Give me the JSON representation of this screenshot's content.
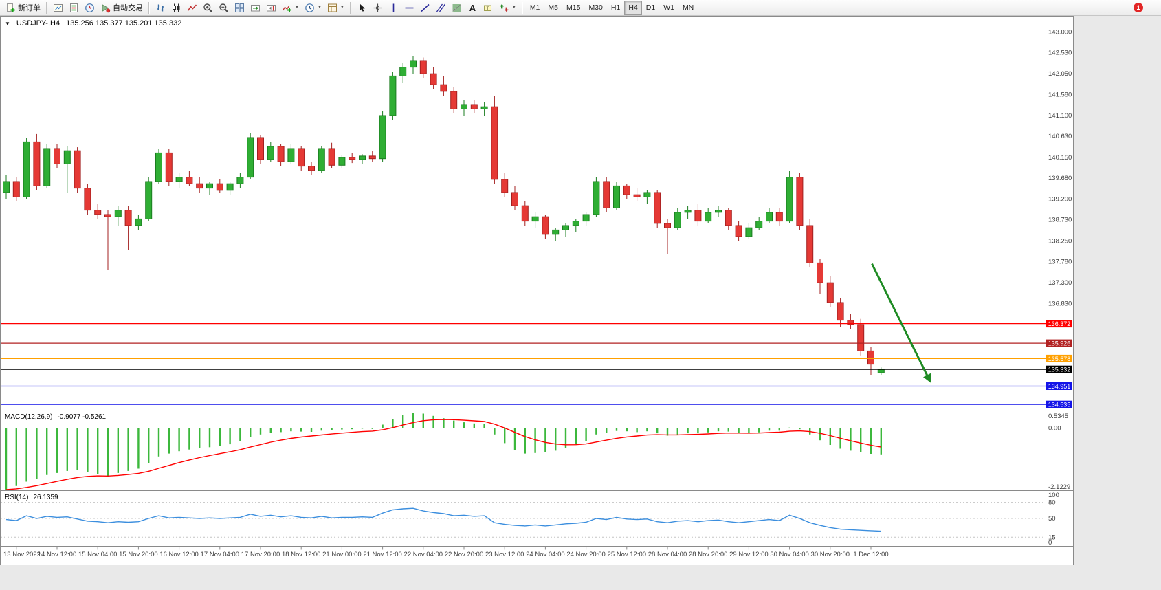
{
  "toolbar": {
    "new_order_label": "新订单",
    "auto_trading_label": "自动交易",
    "left_icons": [
      {
        "name": "new-chart-icon"
      },
      {
        "name": "market-watch-icon"
      },
      {
        "name": "navigator-icon"
      }
    ],
    "chart_icons": [
      {
        "name": "bar-chart-icon"
      },
      {
        "name": "candlestick-chart-icon"
      },
      {
        "name": "line-chart-icon"
      },
      {
        "name": "zoom-in-icon"
      },
      {
        "name": "zoom-out-icon"
      },
      {
        "name": "tile-windows-icon"
      },
      {
        "name": "auto-scroll-icon"
      },
      {
        "name": "chart-shift-icon"
      },
      {
        "name": "indicators-icon",
        "caret": true
      },
      {
        "name": "periods-icon",
        "caret": true
      },
      {
        "name": "templates-icon",
        "caret": true
      }
    ],
    "drawing_icons": [
      {
        "name": "cursor-icon"
      },
      {
        "name": "crosshair-icon"
      },
      {
        "name": "vertical-line-icon"
      },
      {
        "name": "horizontal-line-icon"
      },
      {
        "name": "trendline-icon"
      },
      {
        "name": "channel-icon"
      },
      {
        "name": "fibonacci-icon"
      },
      {
        "name": "text-icon"
      },
      {
        "name": "text-label-icon"
      },
      {
        "name": "arrows-icon",
        "caret": true
      }
    ],
    "timeframes": [
      "M1",
      "M5",
      "M15",
      "M30",
      "H1",
      "H4",
      "D1",
      "W1",
      "MN"
    ],
    "active_timeframe": "H4",
    "notification_badge": "1"
  },
  "chart": {
    "expander": "▼",
    "title_symbol": "USDJPY-,H4",
    "title_ohlc": "135.256 135.377 135.201 135.332"
  },
  "indicators": {
    "macd_label": "MACD(12,26,9)",
    "macd_values": "-0.9077 -0.5261",
    "rsi_label": "RSI(14)",
    "rsi_value": "26.1359"
  },
  "colors": {
    "bull": "#2FAE34",
    "bear": "#E53935",
    "bull_border": "#1B7D20",
    "bear_border": "#A32020",
    "macd_histogram": "#3CB83C",
    "macd_signal": "#FF0000",
    "rsi_line": "#3B8EDE",
    "trend_arrow": "#1F8B24"
  },
  "chart_data": [
    {
      "type": "candlestick",
      "symbol": "USDJPY-",
      "timeframe": "H4",
      "ylim": [
        134.41,
        143.35
      ],
      "y_ticks": [
        "143.000",
        "142.530",
        "142.050",
        "141.580",
        "141.100",
        "140.630",
        "140.150",
        "139.680",
        "139.200",
        "138.730",
        "138.250",
        "137.780",
        "137.300",
        "136.830"
      ],
      "levels": [
        {
          "price": 136.372,
          "label": "136.372",
          "color": "#FF0000"
        },
        {
          "price": 135.926,
          "label": "135.926",
          "color": "#B22222"
        },
        {
          "price": 135.578,
          "label": "135.578",
          "color": "#FFA000"
        },
        {
          "price": 135.332,
          "label": "135.332",
          "color": "#000000",
          "current": true
        },
        {
          "price": 134.951,
          "label": "134.951",
          "color": "#1414E8"
        },
        {
          "price": 134.535,
          "label": "134.535",
          "color": "#1414E8"
        }
      ],
      "annotations": [
        {
          "type": "arrow",
          "from": {
            "index": 85.1,
            "price": 137.73
          },
          "to": {
            "index": 90.8,
            "price": 135.07
          },
          "color": "#1F8B24"
        }
      ],
      "x_labels": [
        "13 Nov 2022",
        "14 Nov 12:00",
        "15 Nov 04:00",
        "15 Nov 20:00",
        "16 Nov 12:00",
        "17 Nov 04:00",
        "17 Nov 20:00",
        "18 Nov 12:00",
        "21 Nov 00:00",
        "21 Nov 12:00",
        "22 Nov 04:00",
        "22 Nov 20:00",
        "23 Nov 12:00",
        "24 Nov 04:00",
        "24 Nov 20:00",
        "25 Nov 12:00",
        "28 Nov 04:00",
        "28 Nov 20:00",
        "29 Nov 12:00",
        "30 Nov 04:00",
        "30 Nov 20:00",
        "1 Dec 12:00"
      ],
      "x_label_start": 1,
      "x_label_step": 4,
      "ohlc": [
        [
          139.35,
          139.75,
          139.2,
          139.6
        ],
        [
          139.6,
          139.7,
          139.15,
          139.25
        ],
        [
          139.25,
          140.6,
          139.2,
          140.5
        ],
        [
          140.5,
          140.68,
          139.4,
          139.5
        ],
        [
          139.5,
          140.45,
          139.45,
          140.35
        ],
        [
          140.35,
          140.45,
          139.9,
          140.0
        ],
        [
          140.0,
          140.4,
          139.35,
          140.3
        ],
        [
          140.3,
          140.38,
          139.35,
          139.45
        ],
        [
          139.45,
          139.55,
          138.85,
          138.95
        ],
        [
          138.95,
          139.1,
          138.75,
          138.85
        ],
        [
          138.85,
          138.95,
          137.6,
          138.8
        ],
        [
          138.8,
          139.05,
          138.6,
          138.95
        ],
        [
          138.95,
          139.05,
          138.05,
          138.6
        ],
        [
          138.6,
          138.85,
          138.5,
          138.75
        ],
        [
          138.75,
          139.7,
          138.7,
          139.6
        ],
        [
          139.6,
          140.35,
          139.55,
          140.25
        ],
        [
          140.25,
          140.35,
          139.5,
          139.6
        ],
        [
          139.6,
          139.8,
          139.45,
          139.7
        ],
        [
          139.7,
          139.85,
          139.5,
          139.55
        ],
        [
          139.55,
          139.7,
          139.35,
          139.45
        ],
        [
          139.45,
          139.6,
          139.3,
          139.55
        ],
        [
          139.55,
          139.65,
          139.35,
          139.4
        ],
        [
          139.4,
          139.6,
          139.3,
          139.55
        ],
        [
          139.55,
          139.8,
          139.45,
          139.7
        ],
        [
          139.7,
          140.7,
          139.65,
          140.6
        ],
        [
          140.6,
          140.65,
          140.0,
          140.1
        ],
        [
          140.1,
          140.5,
          140.05,
          140.4
        ],
        [
          140.4,
          140.45,
          139.95,
          140.05
        ],
        [
          140.05,
          140.45,
          140.0,
          140.35
        ],
        [
          140.35,
          140.4,
          139.85,
          139.95
        ],
        [
          139.95,
          140.05,
          139.75,
          139.85
        ],
        [
          139.85,
          140.4,
          139.8,
          140.35
        ],
        [
          140.35,
          140.48,
          139.9,
          139.97
        ],
        [
          139.97,
          140.2,
          139.9,
          140.15
        ],
        [
          140.15,
          140.25,
          140.02,
          140.1
        ],
        [
          140.1,
          140.22,
          140.0,
          140.18
        ],
        [
          140.18,
          140.3,
          140.05,
          140.12
        ],
        [
          140.12,
          141.2,
          140.05,
          141.1
        ],
        [
          141.1,
          142.1,
          141.0,
          142.0
        ],
        [
          142.0,
          142.3,
          141.85,
          142.2
        ],
        [
          142.2,
          142.45,
          142.05,
          142.35
        ],
        [
          142.35,
          142.42,
          141.95,
          142.05
        ],
        [
          142.05,
          142.2,
          141.7,
          141.8
        ],
        [
          141.8,
          142.0,
          141.55,
          141.65
        ],
        [
          141.65,
          141.75,
          141.15,
          141.25
        ],
        [
          141.25,
          141.45,
          141.1,
          141.35
        ],
        [
          141.35,
          141.45,
          141.15,
          141.25
        ],
        [
          141.25,
          141.4,
          141.1,
          141.3
        ],
        [
          141.3,
          141.55,
          139.55,
          139.65
        ],
        [
          139.65,
          139.8,
          139.25,
          139.35
        ],
        [
          139.35,
          139.5,
          138.95,
          139.05
        ],
        [
          139.05,
          139.15,
          138.6,
          138.7
        ],
        [
          138.7,
          138.9,
          138.55,
          138.8
        ],
        [
          138.8,
          138.85,
          138.3,
          138.4
        ],
        [
          138.4,
          138.55,
          138.25,
          138.5
        ],
        [
          138.5,
          138.65,
          138.35,
          138.6
        ],
        [
          138.6,
          138.75,
          138.45,
          138.7
        ],
        [
          138.7,
          138.9,
          138.6,
          138.85
        ],
        [
          138.85,
          139.7,
          138.8,
          139.6
        ],
        [
          139.6,
          139.7,
          138.9,
          139.0
        ],
        [
          139.0,
          139.6,
          138.95,
          139.5
        ],
        [
          139.5,
          139.55,
          139.2,
          139.3
        ],
        [
          139.3,
          139.45,
          139.15,
          139.25
        ],
        [
          139.25,
          139.4,
          139.1,
          139.35
        ],
        [
          139.35,
          139.4,
          138.55,
          138.65
        ],
        [
          138.65,
          138.75,
          137.95,
          138.55
        ],
        [
          138.55,
          139.0,
          138.5,
          138.9
        ],
        [
          138.9,
          139.05,
          138.75,
          138.95
        ],
        [
          138.95,
          139.1,
          138.6,
          138.7
        ],
        [
          138.7,
          139.0,
          138.65,
          138.9
        ],
        [
          138.9,
          139.05,
          138.8,
          138.95
        ],
        [
          138.95,
          139.0,
          138.5,
          138.6
        ],
        [
          138.6,
          138.7,
          138.25,
          138.35
        ],
        [
          138.35,
          138.65,
          138.3,
          138.55
        ],
        [
          138.55,
          138.8,
          138.5,
          138.7
        ],
        [
          138.7,
          139.0,
          138.65,
          138.9
        ],
        [
          138.9,
          139.0,
          138.6,
          138.7
        ],
        [
          138.7,
          139.85,
          138.65,
          139.7
        ],
        [
          139.7,
          139.8,
          138.5,
          138.6
        ],
        [
          138.6,
          138.75,
          137.65,
          137.75
        ],
        [
          137.75,
          137.85,
          137.05,
          137.3
        ],
        [
          137.3,
          137.45,
          136.75,
          136.85
        ],
        [
          136.85,
          136.95,
          136.3,
          136.45
        ],
        [
          136.45,
          136.6,
          136.25,
          136.35
        ],
        [
          136.35,
          136.48,
          135.65,
          135.75
        ],
        [
          135.75,
          135.85,
          135.2,
          135.45
        ],
        [
          135.256,
          135.377,
          135.201,
          135.332
        ]
      ]
    },
    {
      "type": "bar",
      "name": "MACD(12,26,9)",
      "current_values": "-0.9077 -0.5261",
      "ylim": [
        -2.1229,
        0.5345
      ],
      "y_ticks": [
        "0.5345",
        "0.00",
        "-2.1229"
      ],
      "histogram_color": "#3CB83C",
      "signal_color": "#FF0000",
      "values": [
        -2.12,
        -2.0,
        -1.85,
        -1.75,
        -1.62,
        -1.55,
        -1.48,
        -1.45,
        -1.52,
        -1.58,
        -1.68,
        -1.55,
        -1.48,
        -1.4,
        -1.2,
        -0.98,
        -0.88,
        -0.8,
        -0.74,
        -0.7,
        -0.66,
        -0.62,
        -0.56,
        -0.45,
        -0.3,
        -0.22,
        -0.16,
        -0.14,
        -0.11,
        -0.12,
        -0.13,
        -0.09,
        -0.07,
        -0.05,
        -0.04,
        -0.02,
        -0.03,
        0.12,
        0.32,
        0.46,
        0.5345,
        0.5,
        0.42,
        0.34,
        0.26,
        0.2,
        0.16,
        0.13,
        -0.22,
        -0.52,
        -0.75,
        -0.88,
        -0.86,
        -0.84,
        -0.78,
        -0.68,
        -0.56,
        -0.44,
        -0.22,
        -0.16,
        -0.1,
        -0.11,
        -0.14,
        -0.11,
        -0.18,
        -0.26,
        -0.23,
        -0.18,
        -0.18,
        -0.15,
        -0.11,
        -0.12,
        -0.18,
        -0.19,
        -0.15,
        -0.09,
        -0.09,
        0.02,
        -0.04,
        -0.22,
        -0.42,
        -0.58,
        -0.71,
        -0.78,
        -0.84,
        -0.89,
        -0.9077
      ]
    },
    {
      "type": "line",
      "name": "RSI(14)",
      "current_value": "26.1359",
      "ylim": [
        0,
        100
      ],
      "levels": [
        80,
        50,
        15
      ],
      "y_ticks": [
        "100",
        "80",
        "50",
        "15",
        "0"
      ],
      "color": "#3B8EDE",
      "values": [
        48,
        46,
        55,
        50,
        54,
        52,
        53,
        49,
        45,
        44,
        42,
        44,
        43,
        44,
        50,
        55,
        51,
        52,
        51,
        50,
        51,
        50,
        51,
        52,
        58,
        54,
        56,
        53,
        55,
        52,
        51,
        54,
        51,
        52,
        52,
        53,
        52,
        60,
        66,
        68,
        69,
        64,
        61,
        59,
        55,
        56,
        54,
        55,
        42,
        39,
        37,
        36,
        38,
        36,
        38,
        40,
        41,
        43,
        50,
        48,
        52,
        49,
        48,
        49,
        44,
        42,
        45,
        46,
        44,
        46,
        47,
        44,
        42,
        44,
        46,
        48,
        46,
        56,
        50,
        42,
        37,
        33,
        30,
        29,
        28,
        27,
        26.1359
      ]
    }
  ]
}
